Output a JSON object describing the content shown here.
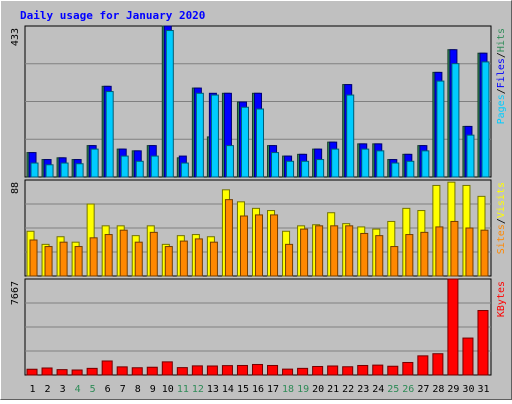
{
  "chart_data": {
    "type": "bar",
    "title": "Daily usage for January 2020",
    "categories": [
      "1",
      "2",
      "3",
      "4",
      "5",
      "6",
      "7",
      "8",
      "9",
      "10",
      "11",
      "12",
      "13",
      "14",
      "15",
      "16",
      "17",
      "18",
      "19",
      "20",
      "21",
      "22",
      "23",
      "24",
      "25",
      "26",
      "27",
      "28",
      "29",
      "30",
      "31"
    ],
    "weekend_days": [
      "4",
      "5",
      "11",
      "12",
      "18",
      "19",
      "25",
      "26"
    ],
    "panels": [
      {
        "ymax_label": "433",
        "ylim": [
          0,
          433
        ],
        "grid": true,
        "series": [
          {
            "name": "Hits",
            "color": "#2e8b57",
            "values": [
              70,
              50,
              55,
              50,
              90,
              260,
              80,
              75,
              90,
              433,
              55,
              255,
              115,
              240,
              215,
              240,
              90,
              60,
              65,
              80,
              100,
              265,
              95,
              95,
              50,
              65,
              90,
              300,
              365,
              145,
              355
            ]
          },
          {
            "name": "Files",
            "color": "#0000ff",
            "values": [
              70,
              50,
              55,
              50,
              90,
              260,
              80,
              75,
              90,
              433,
              60,
              255,
              240,
              240,
              215,
              240,
              90,
              60,
              65,
              80,
              100,
              265,
              95,
              95,
              50,
              65,
              90,
              300,
              365,
              145,
              355
            ]
          },
          {
            "name": "Pages",
            "color": "#00ccff",
            "values": [
              40,
              35,
              40,
              38,
              80,
              245,
              60,
              45,
              60,
              420,
              40,
              240,
              235,
              90,
              200,
              195,
              70,
              45,
              45,
              50,
              80,
              235,
              80,
              75,
              40,
              45,
              75,
              275,
              325,
              120,
              330
            ]
          }
        ],
        "legend": [
          {
            "name": "Pages",
            "color": "#00ccff"
          },
          {
            "name": "/",
            "color": "#000000"
          },
          {
            "name": "Files",
            "color": "#0000ff"
          },
          {
            "name": "/",
            "color": "#000000"
          },
          {
            "name": "Hits",
            "color": "#2e8b57"
          }
        ]
      },
      {
        "ymax_label": "88",
        "ylim": [
          0,
          88
        ],
        "grid": true,
        "series": [
          {
            "name": "Visits",
            "color": "#ffff00",
            "values": [
              41,
              29,
              36,
              31,
              66,
              46,
              46,
              37,
              46,
              29,
              37,
              38,
              36,
              79,
              68,
              62,
              60,
              41,
              46,
              47,
              58,
              48,
              45,
              43,
              50,
              62,
              60,
              83,
              86,
              83,
              73
            ]
          },
          {
            "name": "Sites",
            "color": "#ff8800",
            "values": [
              33,
              27,
              31,
              27,
              35,
              38,
              42,
              31,
              40,
              27,
              32,
              34,
              31,
              70,
              55,
              56,
              56,
              29,
              43,
              46,
              46,
              46,
              39,
              37,
              27,
              38,
              40,
              45,
              50,
              44,
              42
            ]
          }
        ],
        "legend": [
          {
            "name": "Sites",
            "color": "#ff8800"
          },
          {
            "name": "/",
            "color": "#000000"
          },
          {
            "name": "Visits",
            "color": "#ffff00"
          }
        ]
      },
      {
        "ymax_label": "7667",
        "ylim": [
          0,
          7667
        ],
        "grid": true,
        "series": [
          {
            "name": "KBytes",
            "color": "#ff0000",
            "values": [
              460,
              560,
              430,
              400,
              530,
              1120,
              650,
              580,
              620,
              1050,
              590,
              730,
              720,
              750,
              760,
              840,
              760,
              470,
              530,
              680,
              720,
              660,
              760,
              790,
              700,
              1000,
              1530,
              1700,
              7667,
              2950,
              5150
            ]
          }
        ],
        "legend": [
          {
            "name": "KBytes",
            "color": "#ff0000"
          }
        ]
      }
    ]
  }
}
